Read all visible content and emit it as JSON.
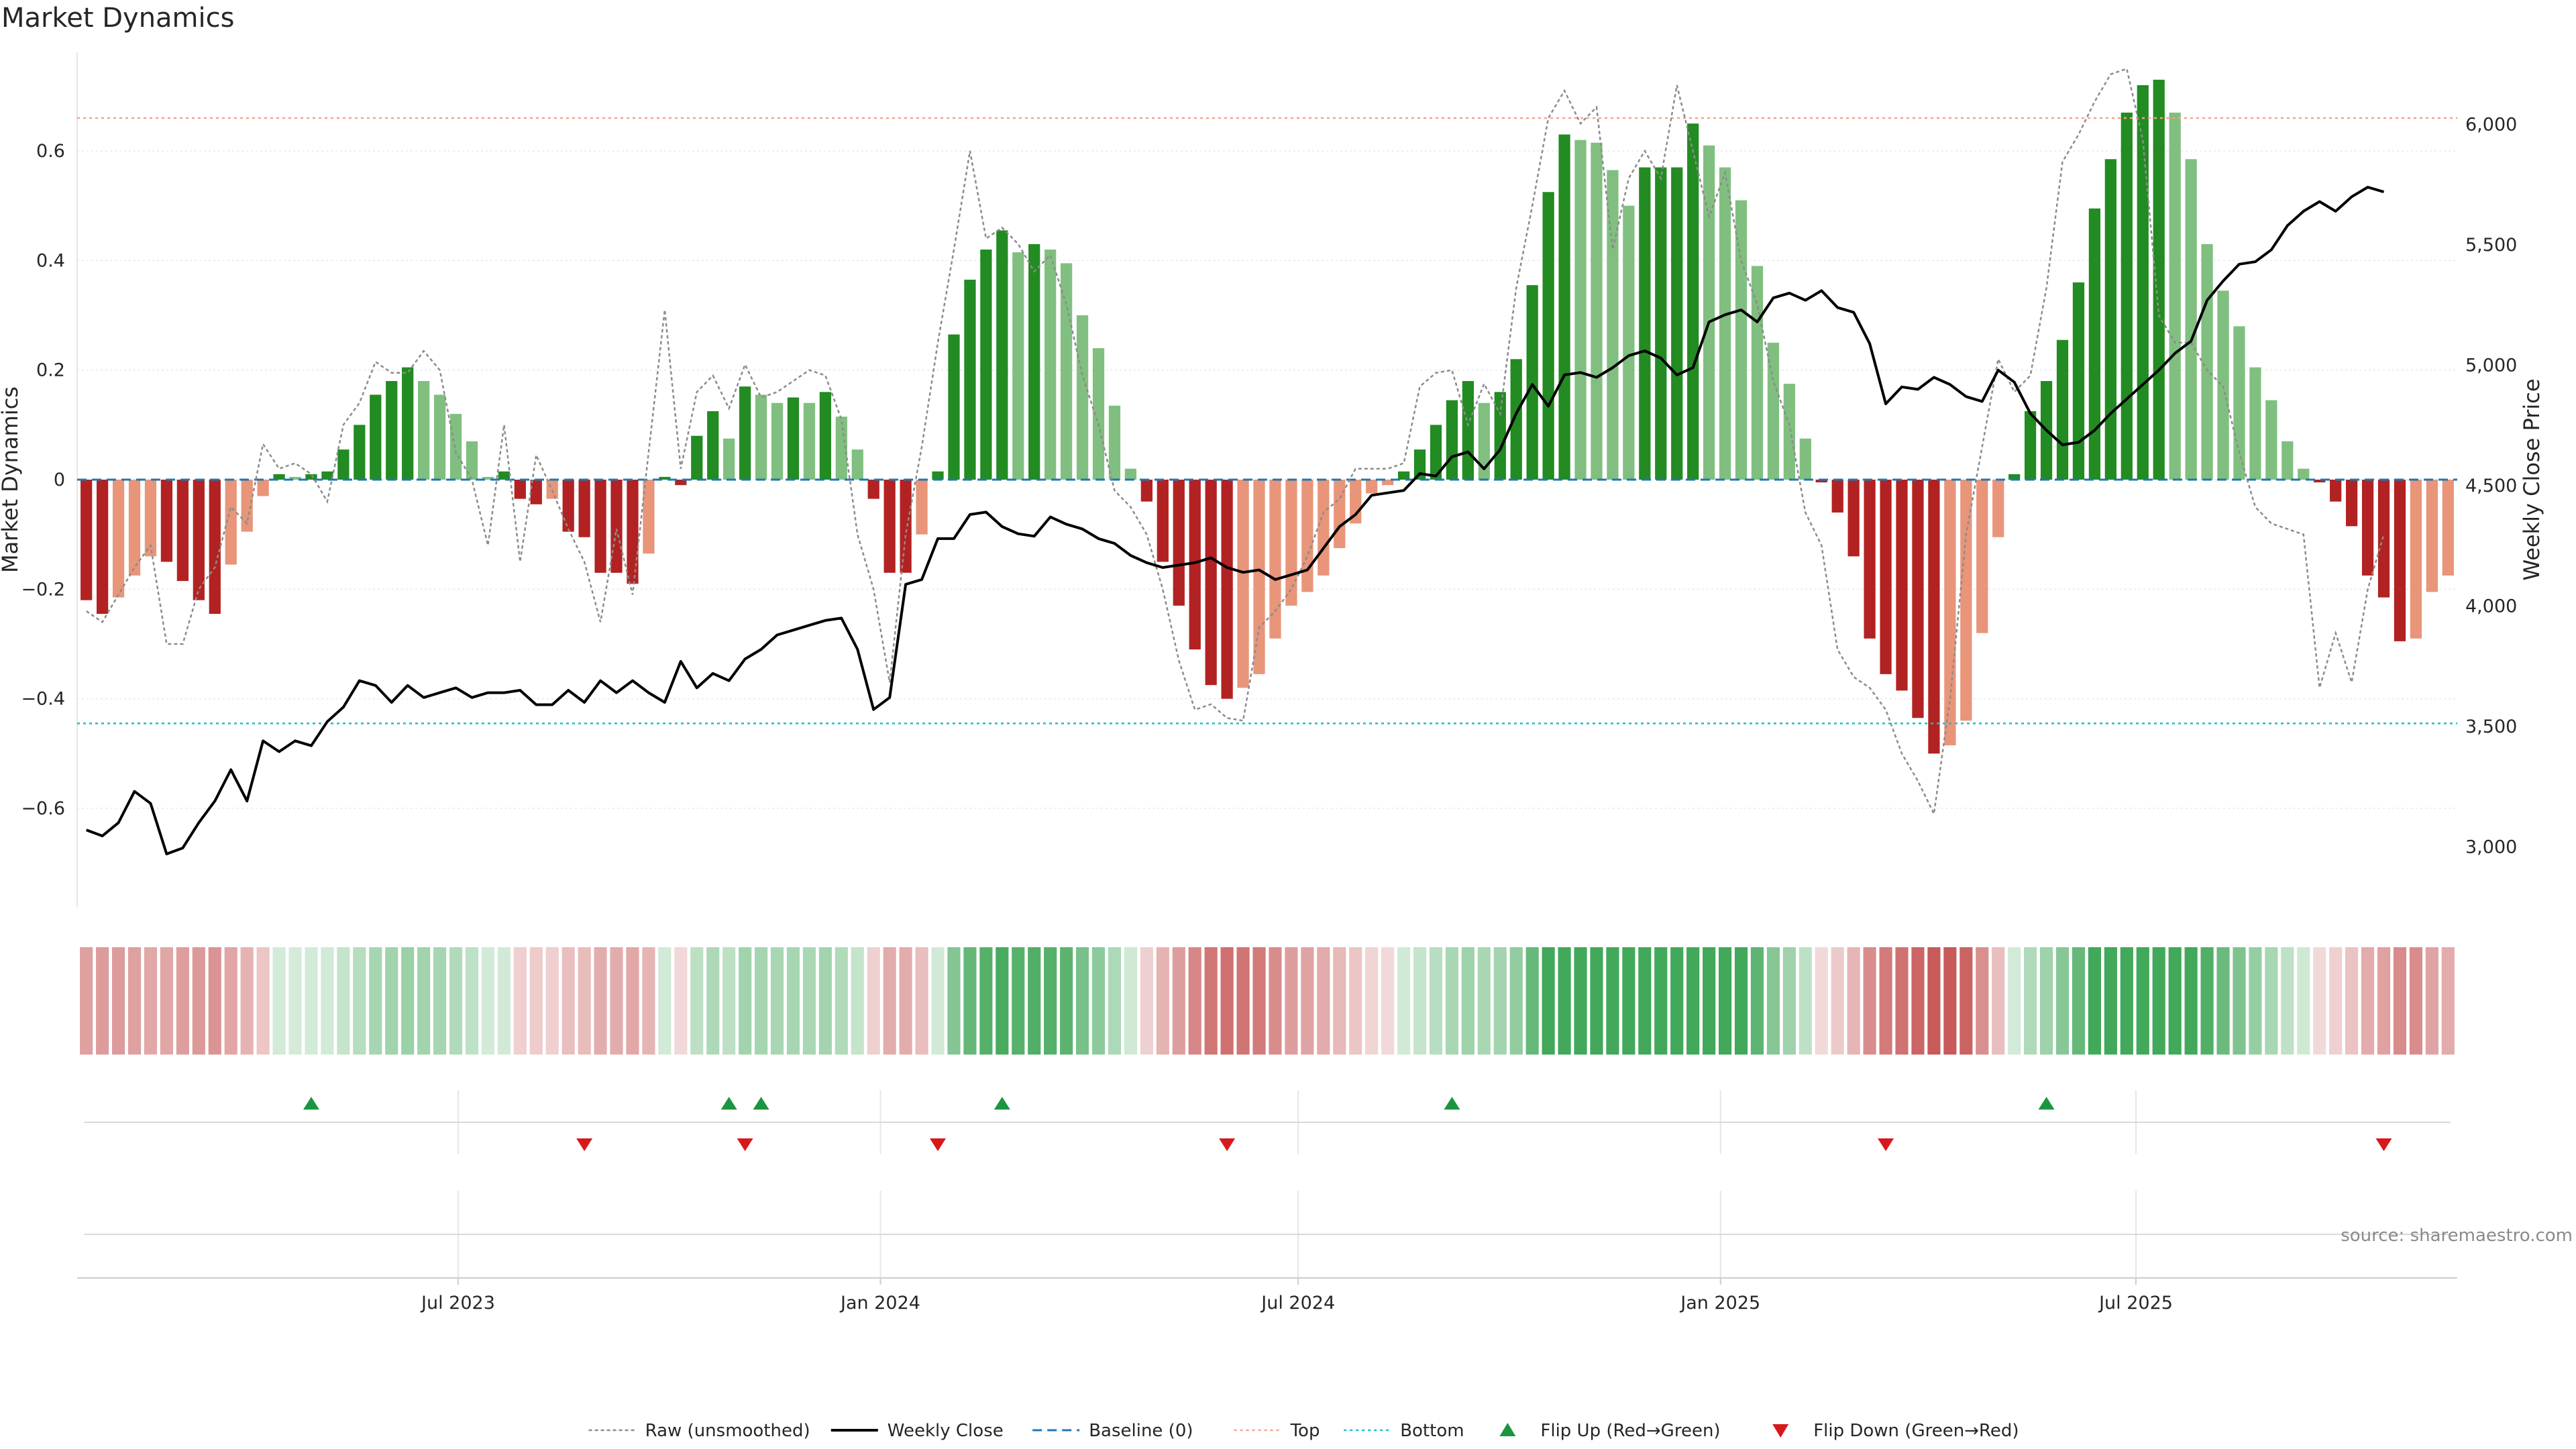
{
  "chart_data": {
    "type": "bar",
    "title": "Market Dynamics",
    "ylabel": "Market Dynamics",
    "y2label": "Weekly Close Price",
    "ylim": [
      -0.78,
      0.78
    ],
    "y2lim": [
      2750,
      6300
    ],
    "yticks": [
      {
        "v": -0.6,
        "label": "−0.6"
      },
      {
        "v": -0.4,
        "label": "−0.4"
      },
      {
        "v": -0.2,
        "label": "−0.2"
      },
      {
        "v": 0,
        "label": "0"
      },
      {
        "v": 0.2,
        "label": "0.2"
      },
      {
        "v": 0.4,
        "label": "0.4"
      },
      {
        "v": 0.6,
        "label": "0.6"
      }
    ],
    "y2ticks": [
      {
        "v": 3000,
        "label": "3,000"
      },
      {
        "v": 3500,
        "label": "3,500"
      },
      {
        "v": 4000,
        "label": "4,000"
      },
      {
        "v": 4500,
        "label": "4,500"
      },
      {
        "v": 5000,
        "label": "5,000"
      },
      {
        "v": 5500,
        "label": "5,500"
      },
      {
        "v": 6000,
        "label": "6,000"
      }
    ],
    "top_level": 0.66,
    "bottom_level": -0.445,
    "start_date": "2023-01-20",
    "xticks": [
      {
        "date": "2023-07-01",
        "label": "Jul 2023"
      },
      {
        "date": "2024-01-01",
        "label": "Jan 2024"
      },
      {
        "date": "2024-07-01",
        "label": "Jul 2024"
      },
      {
        "date": "2025-01-01",
        "label": "Jan 2025"
      },
      {
        "date": "2025-07-01",
        "label": "Jul 2025"
      }
    ],
    "momentum": [
      -0.22,
      -0.245,
      -0.215,
      -0.175,
      -0.14,
      -0.15,
      -0.185,
      -0.22,
      -0.245,
      -0.155,
      -0.095,
      -0.03,
      0.01,
      0.005,
      0.01,
      0.015,
      0.055,
      0.1,
      0.155,
      0.18,
      0.205,
      0.18,
      0.155,
      0.12,
      0.07,
      0.005,
      0.015,
      -0.035,
      -0.045,
      -0.035,
      -0.095,
      -0.105,
      -0.17,
      -0.17,
      -0.19,
      -0.135,
      0.005,
      -0.01,
      0.08,
      0.125,
      0.075,
      0.17,
      0.155,
      0.14,
      0.15,
      0.14,
      0.16,
      0.115,
      0.055,
      -0.035,
      -0.17,
      -0.17,
      -0.1,
      0.015,
      0.265,
      0.365,
      0.42,
      0.455,
      0.415,
      0.43,
      0.42,
      0.395,
      0.3,
      0.24,
      0.135,
      0.02,
      -0.04,
      -0.15,
      -0.23,
      -0.31,
      -0.375,
      -0.4,
      -0.38,
      -0.355,
      -0.29,
      -0.23,
      -0.205,
      -0.175,
      -0.125,
      -0.08,
      -0.025,
      -0.01,
      0.015,
      0.055,
      0.1,
      0.145,
      0.18,
      0.14,
      0.16,
      0.22,
      0.355,
      0.525,
      0.63,
      0.62,
      0.615,
      0.565,
      0.5,
      0.57,
      0.57,
      0.57,
      0.65,
      0.61,
      0.57,
      0.51,
      0.39,
      0.25,
      0.175,
      0.075,
      -0.005,
      -0.06,
      -0.14,
      -0.29,
      -0.355,
      -0.385,
      -0.435,
      -0.5,
      -0.485,
      -0.44,
      -0.28,
      -0.105,
      0.01,
      0.125,
      0.18,
      0.255,
      0.36,
      0.495,
      0.585,
      0.67,
      0.72,
      0.73,
      0.67,
      0.585,
      0.43,
      0.345,
      0.28,
      0.205,
      0.145,
      0.07,
      0.02,
      -0.005,
      -0.04,
      -0.085,
      -0.175,
      -0.215,
      -0.295,
      -0.29,
      -0.205,
      -0.175
    ],
    "raw": [
      -0.24,
      -0.26,
      -0.21,
      -0.16,
      -0.12,
      -0.3,
      -0.3,
      -0.2,
      -0.16,
      -0.05,
      -0.08,
      0.065,
      0.02,
      0.03,
      0.01,
      -0.04,
      0.1,
      0.14,
      0.215,
      0.195,
      0.195,
      0.235,
      0.2,
      0.05,
      0.0,
      -0.12,
      0.1,
      -0.15,
      0.045,
      -0.02,
      -0.09,
      -0.15,
      -0.26,
      -0.09,
      -0.21,
      0.05,
      0.31,
      0.02,
      0.16,
      0.19,
      0.13,
      0.21,
      0.15,
      0.16,
      0.18,
      0.2,
      0.19,
      0.11,
      -0.1,
      -0.2,
      -0.37,
      -0.1,
      0.06,
      0.25,
      0.42,
      0.6,
      0.44,
      0.46,
      0.43,
      0.38,
      0.41,
      0.32,
      0.19,
      0.1,
      -0.02,
      -0.05,
      -0.1,
      -0.2,
      -0.33,
      -0.42,
      -0.41,
      -0.435,
      -0.44,
      -0.27,
      -0.24,
      -0.2,
      -0.14,
      -0.06,
      -0.035,
      0.02,
      0.02,
      0.02,
      0.03,
      0.17,
      0.195,
      0.2,
      0.1,
      0.175,
      0.12,
      0.35,
      0.5,
      0.66,
      0.71,
      0.65,
      0.68,
      0.42,
      0.55,
      0.6,
      0.55,
      0.72,
      0.6,
      0.48,
      0.56,
      0.4,
      0.32,
      0.18,
      0.1,
      -0.06,
      -0.12,
      -0.31,
      -0.36,
      -0.38,
      -0.42,
      -0.5,
      -0.55,
      -0.61,
      -0.4,
      -0.1,
      0.06,
      0.22,
      0.16,
      0.19,
      0.35,
      0.58,
      0.63,
      0.69,
      0.74,
      0.75,
      0.62,
      0.3,
      0.25,
      0.25,
      0.2,
      0.17,
      0.05,
      -0.05,
      -0.08,
      -0.09,
      -0.1,
      -0.38,
      -0.28,
      -0.37,
      -0.2,
      -0.1
    ],
    "close": [
      3070,
      3045,
      3100,
      3230,
      3180,
      2970,
      2995,
      3100,
      3190,
      3320,
      3190,
      3440,
      3395,
      3440,
      3420,
      3520,
      3580,
      3690,
      3670,
      3600,
      3670,
      3620,
      3640,
      3660,
      3620,
      3640,
      3640,
      3650,
      3590,
      3590,
      3650,
      3600,
      3690,
      3640,
      3690,
      3640,
      3600,
      3770,
      3660,
      3720,
      3690,
      3780,
      3820,
      3880,
      3900,
      3920,
      3940,
      3950,
      3820,
      3570,
      3620,
      4090,
      4110,
      4280,
      4280,
      4380,
      4390,
      4330,
      4300,
      4290,
      4370,
      4340,
      4320,
      4280,
      4260,
      4210,
      4180,
      4160,
      4170,
      4180,
      4200,
      4160,
      4140,
      4150,
      4110,
      4130,
      4150,
      4240,
      4330,
      4380,
      4460,
      4470,
      4480,
      4550,
      4540,
      4620,
      4640,
      4570,
      4650,
      4800,
      4920,
      4830,
      4960,
      4970,
      4950,
      4990,
      5040,
      5060,
      5030,
      4960,
      4990,
      5180,
      5210,
      5230,
      5180,
      5280,
      5300,
      5270,
      5310,
      5240,
      5220,
      5090,
      4840,
      4910,
      4900,
      4950,
      4920,
      4870,
      4850,
      4980,
      4930,
      4800,
      4730,
      4670,
      4680,
      4730,
      4800,
      4860,
      4920,
      4980,
      5050,
      5100,
      5270,
      5350,
      5420,
      5430,
      5480,
      5580,
      5640,
      5680,
      5640,
      5700,
      5740,
      5720
    ],
    "sentiment": [
      -0.46,
      -0.5,
      -0.5,
      -0.46,
      -0.4,
      -0.41,
      -0.47,
      -0.52,
      -0.56,
      -0.42,
      -0.31,
      -0.17,
      0.02,
      0.01,
      0.02,
      0.03,
      0.12,
      0.22,
      0.32,
      0.36,
      0.4,
      0.36,
      0.32,
      0.25,
      0.16,
      0.02,
      0.03,
      -0.09,
      -0.11,
      -0.09,
      -0.22,
      -0.24,
      -0.36,
      -0.36,
      -0.4,
      -0.3,
      0.02,
      -0.02,
      0.17,
      0.27,
      0.17,
      0.36,
      0.33,
      0.3,
      0.32,
      0.3,
      0.34,
      0.25,
      0.12,
      -0.08,
      -0.36,
      -0.36,
      -0.22,
      0.03,
      0.56,
      0.77,
      0.88,
      0.96,
      0.87,
      0.9,
      0.88,
      0.83,
      0.63,
      0.5,
      0.28,
      0.04,
      -0.08,
      -0.31,
      -0.48,
      -0.65,
      -0.79,
      -0.84,
      -0.8,
      -0.75,
      -0.61,
      -0.48,
      -0.43,
      -0.37,
      -0.26,
      -0.17,
      -0.05,
      -0.02,
      0.03,
      0.12,
      0.21,
      0.3,
      0.38,
      0.3,
      0.34,
      0.46,
      0.75,
      1.0,
      1.0,
      1.0,
      1.0,
      1.0,
      1.0,
      1.0,
      1.0,
      1.0,
      1.0,
      1.0,
      1.0,
      1.0,
      0.82,
      0.53,
      0.37,
      0.16,
      -0.01,
      -0.13,
      -0.29,
      -0.61,
      -0.75,
      -0.81,
      -0.92,
      -1.0,
      -1.0,
      -0.93,
      -0.59,
      -0.22,
      0.02,
      0.26,
      0.38,
      0.54,
      0.76,
      1.0,
      1.0,
      1.0,
      1.0,
      1.0,
      1.0,
      1.0,
      0.9,
      0.73,
      0.59,
      0.43,
      0.31,
      0.15,
      0.04,
      -0.01,
      -0.08,
      -0.18,
      -0.37,
      -0.45,
      -0.62,
      -0.61,
      -0.43,
      -0.37
    ],
    "flips_up": [
      "2023-04-28",
      "2023-10-27",
      "2023-11-10",
      "2024-02-23",
      "2024-09-06",
      "2025-05-23"
    ],
    "flips_down": [
      "2023-08-25",
      "2023-11-03",
      "2024-01-26",
      "2024-05-31",
      "2025-03-14",
      "2025-10-17"
    ],
    "colors": {
      "pos_strong": "#228b22",
      "pos_weak": "#80bf80",
      "neg_strong": "#b22222",
      "neg_weak": "#e8957a",
      "raw": "#8c8c8c",
      "close": "#000000",
      "baseline": "#1f77b4",
      "top": "#f4a582",
      "bottom": "#17becf",
      "flip_up": "#1a9641",
      "flip_down": "#d7191c"
    },
    "legend": [
      {
        "key": "raw",
        "label": "Raw (unsmoothed)"
      },
      {
        "key": "close",
        "label": "Weekly Close"
      },
      {
        "key": "baseline",
        "label": "Baseline (0)"
      },
      {
        "key": "top",
        "label": "Top"
      },
      {
        "key": "bottom",
        "label": "Bottom"
      },
      {
        "key": "flip_up",
        "label": "Flip Up (Red→Green)"
      },
      {
        "key": "flip_down",
        "label": "Flip Down (Green→Red)"
      }
    ],
    "source": "source: sharemaestro.com"
  }
}
